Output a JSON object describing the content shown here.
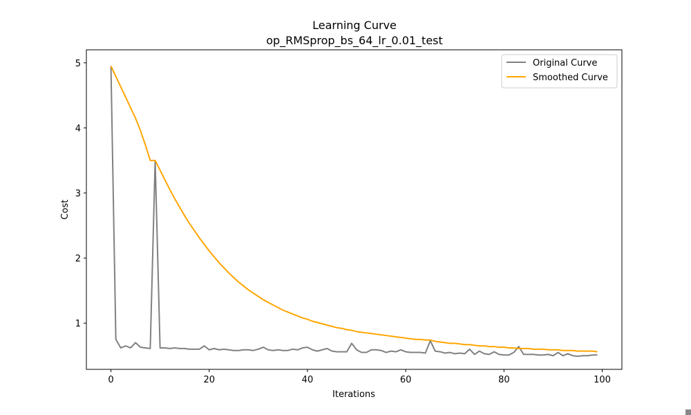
{
  "chart_data": {
    "type": "line",
    "title": "Learning Curve",
    "subtitle": "op_RMSprop_bs_64_lr_0.01_test",
    "xlabel": "Iterations",
    "ylabel": "Cost",
    "xlim": [
      -5,
      104
    ],
    "ylim": [
      0.29,
      5.2
    ],
    "xticks": [
      0,
      20,
      40,
      60,
      80,
      100
    ],
    "yticks": [
      1,
      2,
      3,
      4,
      5
    ],
    "grid": false,
    "legend_position": "top-right",
    "x": [
      0,
      1,
      2,
      3,
      4,
      5,
      6,
      7,
      8,
      9,
      10,
      11,
      12,
      13,
      14,
      15,
      16,
      17,
      18,
      19,
      20,
      21,
      22,
      23,
      24,
      25,
      26,
      27,
      28,
      29,
      30,
      31,
      32,
      33,
      34,
      35,
      36,
      37,
      38,
      39,
      40,
      41,
      42,
      43,
      44,
      45,
      46,
      47,
      48,
      49,
      50,
      51,
      52,
      53,
      54,
      55,
      56,
      57,
      58,
      59,
      60,
      61,
      62,
      63,
      64,
      65,
      66,
      67,
      68,
      69,
      70,
      71,
      72,
      73,
      74,
      75,
      76,
      77,
      78,
      79,
      80,
      81,
      82,
      83,
      84,
      85,
      86,
      87,
      88,
      89,
      90,
      91,
      92,
      93,
      94,
      95,
      96,
      97,
      98,
      99
    ],
    "series": [
      {
        "name": "Original Curve",
        "color": "#808080",
        "values": [
          4.95,
          0.75,
          0.62,
          0.65,
          0.62,
          0.7,
          0.63,
          0.62,
          0.61,
          3.5,
          0.62,
          0.62,
          0.61,
          0.62,
          0.61,
          0.61,
          0.6,
          0.6,
          0.6,
          0.65,
          0.59,
          0.61,
          0.59,
          0.6,
          0.59,
          0.58,
          0.58,
          0.59,
          0.59,
          0.58,
          0.6,
          0.63,
          0.59,
          0.58,
          0.59,
          0.58,
          0.58,
          0.6,
          0.59,
          0.62,
          0.63,
          0.59,
          0.57,
          0.59,
          0.61,
          0.57,
          0.56,
          0.56,
          0.56,
          0.69,
          0.59,
          0.55,
          0.55,
          0.59,
          0.59,
          0.58,
          0.55,
          0.57,
          0.56,
          0.59,
          0.56,
          0.55,
          0.55,
          0.55,
          0.54,
          0.73,
          0.57,
          0.56,
          0.54,
          0.55,
          0.53,
          0.54,
          0.53,
          0.6,
          0.52,
          0.57,
          0.53,
          0.52,
          0.56,
          0.52,
          0.51,
          0.51,
          0.55,
          0.64,
          0.52,
          0.52,
          0.52,
          0.51,
          0.51,
          0.52,
          0.5,
          0.55,
          0.5,
          0.53,
          0.5,
          0.49,
          0.5,
          0.5,
          0.51,
          0.51
        ]
      },
      {
        "name": "Smoothed Curve",
        "color": "#FFA500",
        "values": [
          4.95,
          4.79,
          4.63,
          4.47,
          4.31,
          4.15,
          3.96,
          3.74,
          3.5,
          3.5,
          3.35,
          3.2,
          3.05,
          2.91,
          2.78,
          2.65,
          2.53,
          2.42,
          2.31,
          2.21,
          2.11,
          2.02,
          1.93,
          1.85,
          1.77,
          1.7,
          1.63,
          1.57,
          1.51,
          1.46,
          1.41,
          1.36,
          1.32,
          1.28,
          1.24,
          1.2,
          1.17,
          1.14,
          1.11,
          1.08,
          1.06,
          1.03,
          1.01,
          0.99,
          0.97,
          0.95,
          0.93,
          0.92,
          0.9,
          0.89,
          0.87,
          0.86,
          0.85,
          0.84,
          0.83,
          0.82,
          0.81,
          0.8,
          0.79,
          0.78,
          0.77,
          0.76,
          0.75,
          0.75,
          0.74,
          0.74,
          0.72,
          0.71,
          0.7,
          0.69,
          0.69,
          0.68,
          0.67,
          0.67,
          0.66,
          0.65,
          0.65,
          0.64,
          0.64,
          0.63,
          0.63,
          0.62,
          0.62,
          0.61,
          0.61,
          0.61,
          0.6,
          0.6,
          0.6,
          0.59,
          0.59,
          0.59,
          0.58,
          0.58,
          0.58,
          0.57,
          0.57,
          0.57,
          0.57,
          0.56
        ]
      }
    ]
  }
}
